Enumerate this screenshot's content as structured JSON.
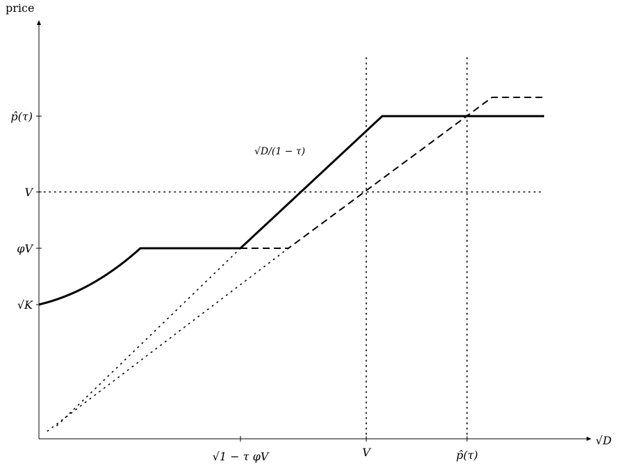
{
  "figure": {
    "y_axis_label": "price",
    "x_axis_label": "√D",
    "y_ticks": {
      "p_hat": "p̂(τ)",
      "v": "V",
      "phi_v": "φV",
      "sqrt_k": "√K"
    },
    "x_ticks": {
      "sqrt_one_minus_tau_phi_v": "√1 − τ φV",
      "v": "V",
      "p_hat": "p̂(τ)"
    },
    "curve_annotation": "√D/(1 − τ)"
  },
  "chart_data": {
    "type": "line",
    "series": [
      {
        "style": "solid"
      },
      {
        "style": "dashed"
      }
    ],
    "reference_lines": [
      {
        "orientation": "horizontal",
        "at": "V",
        "style": "dotted"
      },
      {
        "orientation": "vertical",
        "at": "V",
        "style": "dotted"
      },
      {
        "orientation": "vertical",
        "at": "p̂(τ)",
        "style": "dotted"
      }
    ],
    "grid": false
  }
}
